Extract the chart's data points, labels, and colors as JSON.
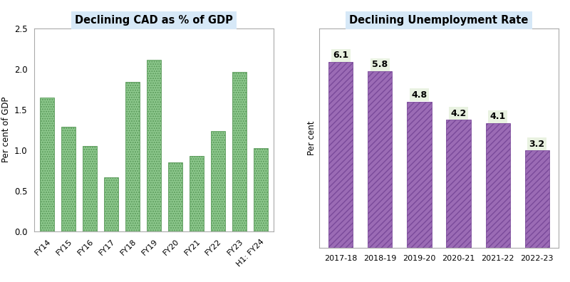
{
  "chart1": {
    "title": "Declining CAD as % of GDP",
    "ylabel": "Per cent of GDP",
    "categories": [
      "FY14",
      "FY15",
      "FY16",
      "FY17",
      "FY18",
      "FY19",
      "FY20",
      "FY21",
      "FY22",
      "FY23",
      "H1: FY24"
    ],
    "values": [
      1.65,
      1.29,
      1.05,
      0.66,
      1.84,
      2.11,
      0.85,
      0.93,
      1.23,
      1.96,
      1.02
    ],
    "ylim": [
      0,
      2.5
    ],
    "yticks": [
      0.0,
      0.5,
      1.0,
      1.5,
      2.0,
      2.5
    ],
    "bar_color": "#8dc88d",
    "bar_edgecolor": "#5a9a5a",
    "hatch": ".....",
    "title_bg_color": "#d6e8f7",
    "bg_color": "#ffffff",
    "border_color": "#999999"
  },
  "chart2": {
    "title": "Declining Unemployment Rate",
    "ylabel": "Per cent",
    "categories": [
      "2017-18",
      "2018-19",
      "2019-20",
      "2020-21",
      "2021-22",
      "2022-23"
    ],
    "values": [
      6.1,
      5.8,
      4.8,
      4.2,
      4.1,
      3.2
    ],
    "ylim": [
      0,
      7.2
    ],
    "bar_color": "#9b6bb5",
    "bar_edgecolor": "#7a4a9a",
    "hatch": "////",
    "title_bg_color": "#d6e8f7",
    "label_bg_color": "#e8f2e0",
    "bg_color": "#ffffff",
    "border_color": "#999999"
  },
  "fig_bg_color": "#ffffff"
}
